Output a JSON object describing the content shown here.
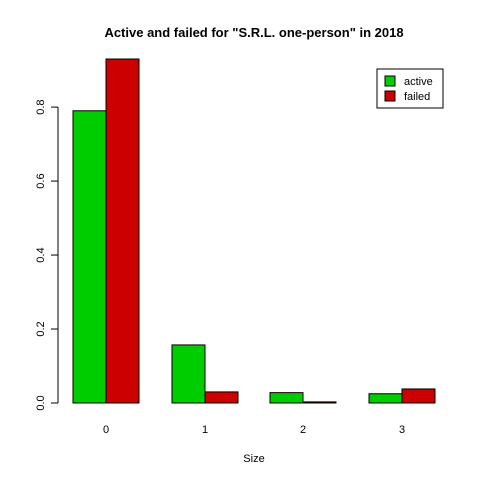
{
  "chart_data": {
    "type": "bar",
    "title": "Active and failed for \"S.R.L. one-person\" in 2018",
    "xlabel": "Size",
    "ylabel": "",
    "categories": [
      "0",
      "1",
      "2",
      "3"
    ],
    "series": [
      {
        "name": "active",
        "color": "#00cd00",
        "values": [
          0.79,
          0.157,
          0.028,
          0.025
        ]
      },
      {
        "name": "failed",
        "color": "#cd0000",
        "values": [
          0.93,
          0.03,
          0.003,
          0.038
        ]
      }
    ],
    "ylim": [
      0,
      0.93
    ],
    "yticks": [
      "0.0",
      "0.2",
      "0.4",
      "0.6",
      "0.8"
    ],
    "grid": false,
    "legend_position": "top-right"
  }
}
